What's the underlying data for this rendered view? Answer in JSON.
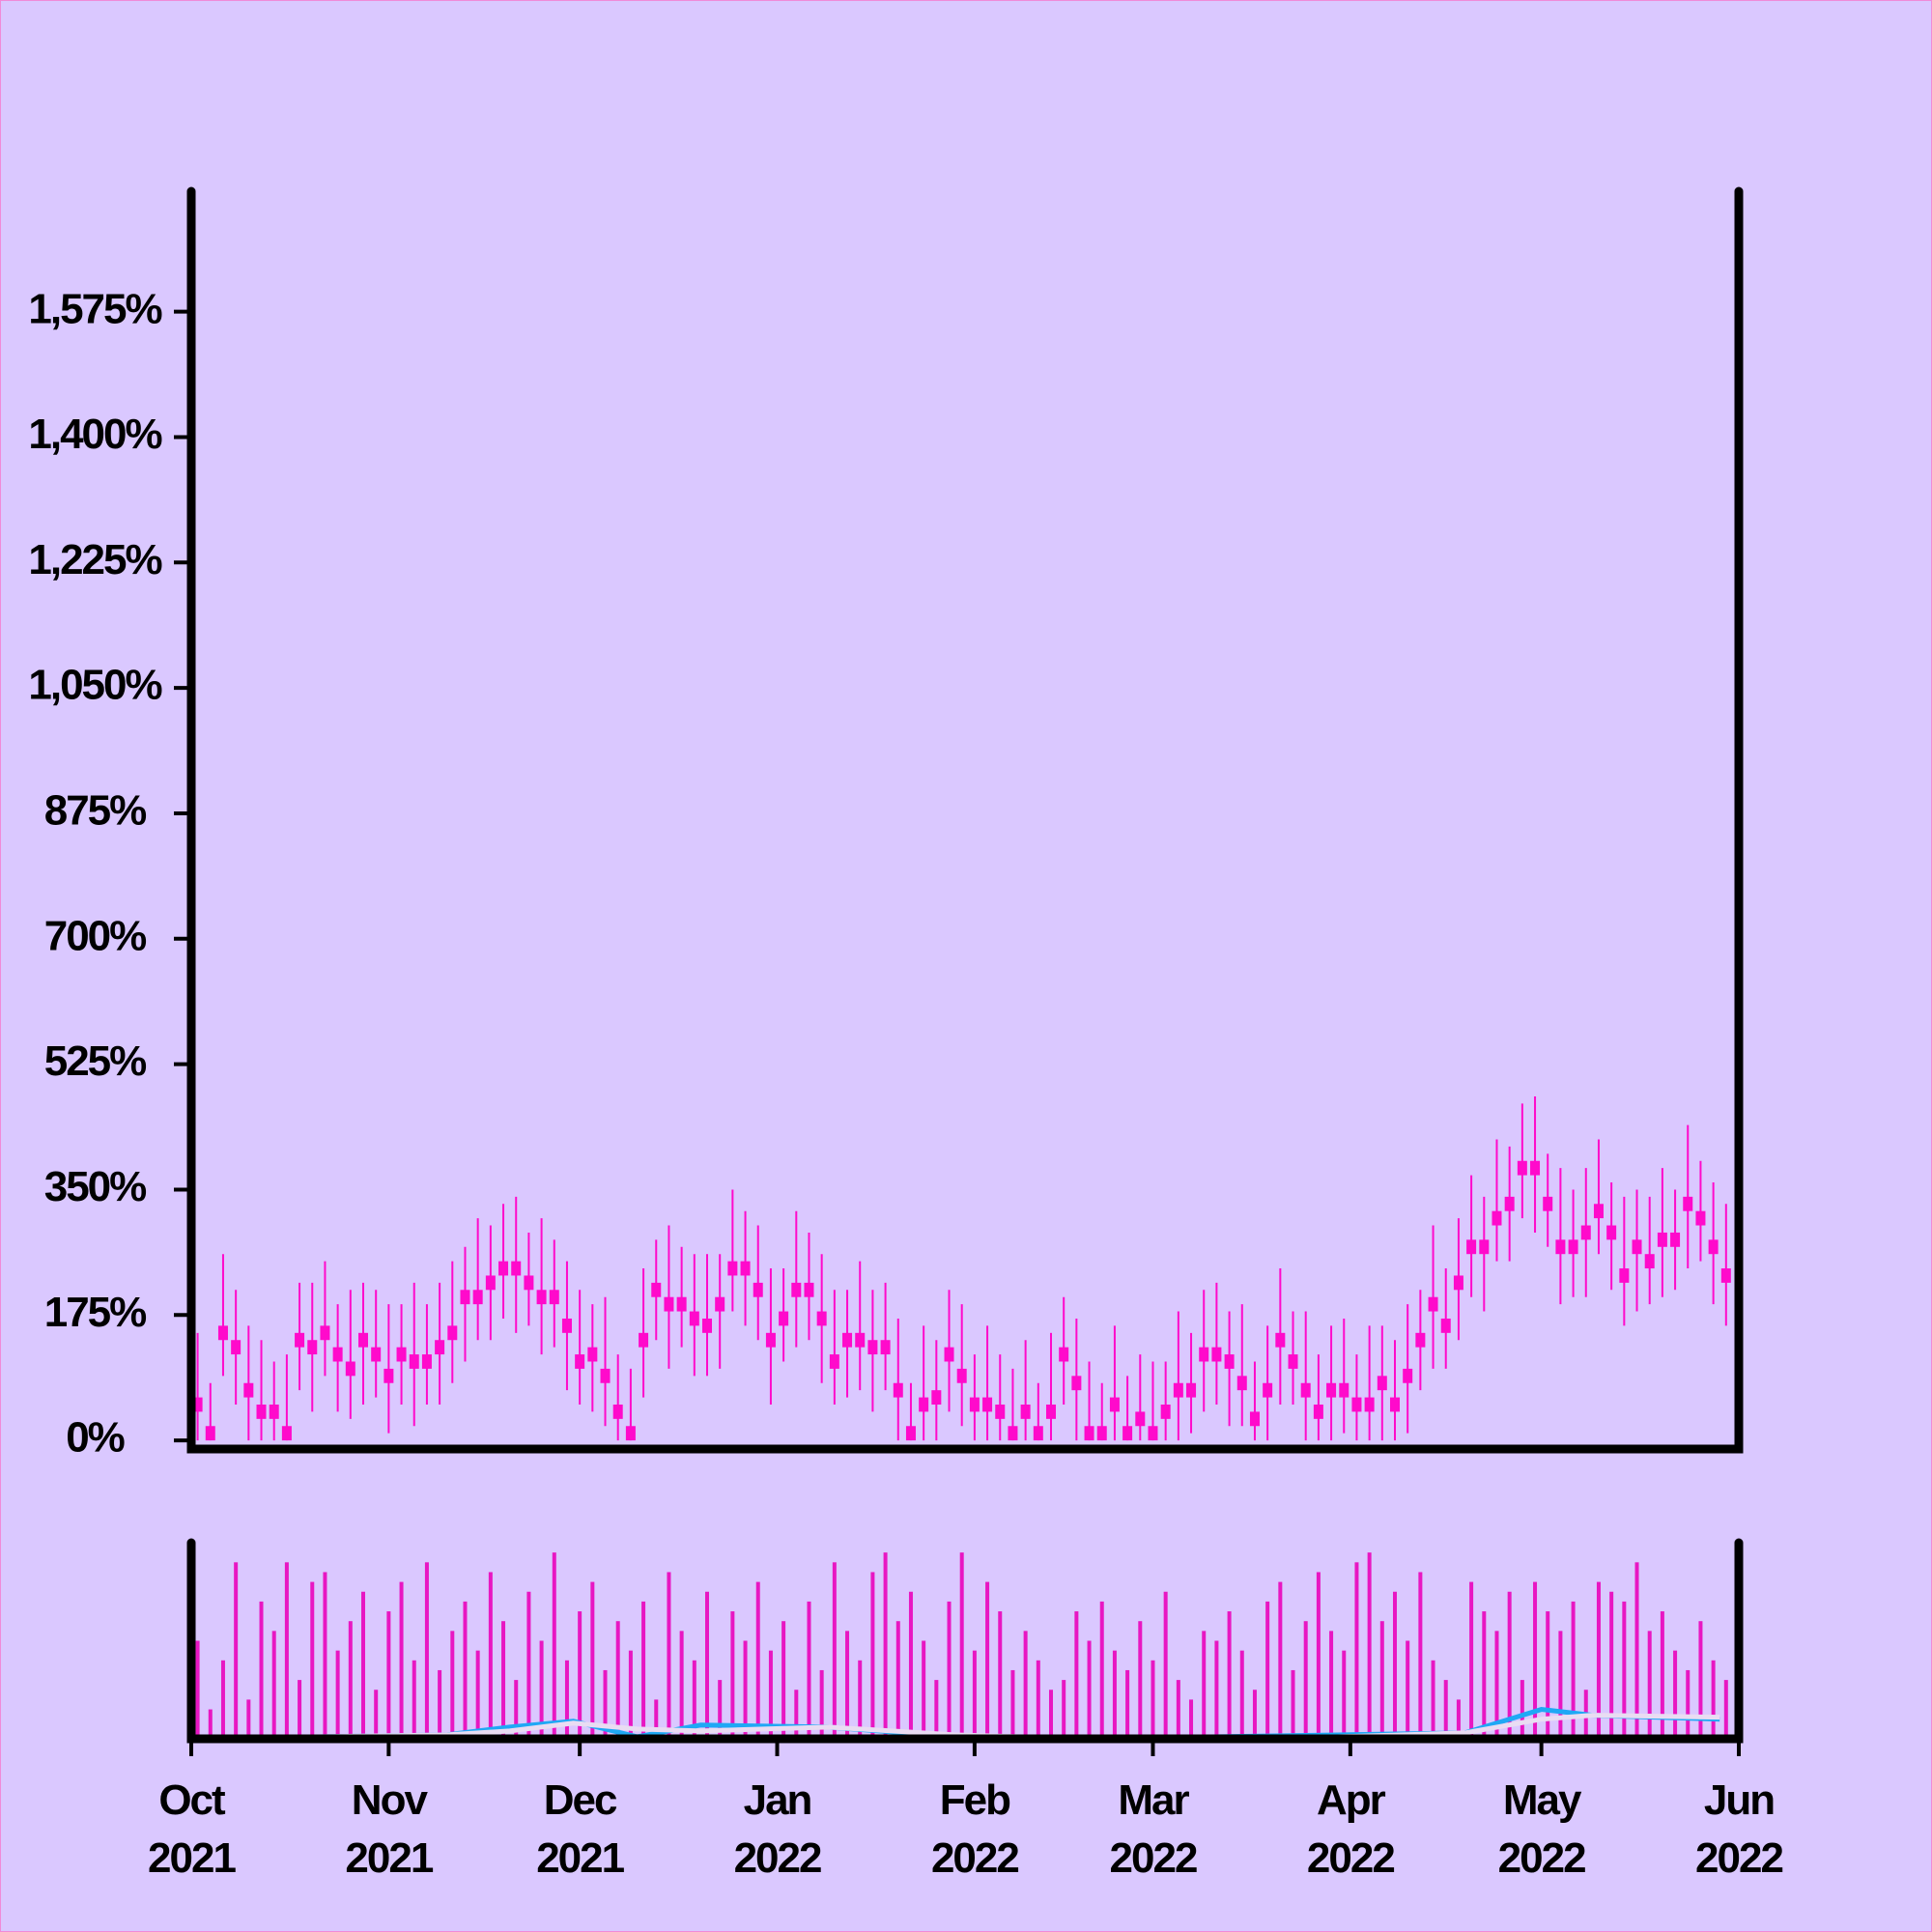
{
  "chart_data": [
    {
      "type": "candlestick",
      "x": [
        1,
        3,
        5,
        7,
        9,
        11,
        13,
        15,
        17,
        19,
        21,
        23,
        25,
        27,
        29,
        31,
        33,
        35,
        37,
        39,
        41,
        43,
        45,
        47,
        49,
        51,
        53,
        55,
        57,
        59,
        61,
        63,
        65,
        67,
        69,
        71,
        73,
        75,
        77,
        79,
        81,
        83,
        85,
        87,
        89,
        91,
        93,
        95,
        97,
        99,
        101,
        103,
        105,
        107,
        109,
        111,
        113,
        115,
        117,
        119,
        121,
        123,
        125,
        127,
        129,
        131,
        133,
        135,
        137,
        139,
        141,
        143,
        145,
        147,
        149,
        151,
        153,
        155,
        157,
        159,
        161,
        163,
        165,
        167,
        169,
        171,
        173,
        175,
        177,
        179,
        181,
        183,
        185,
        187,
        189,
        191,
        193,
        195,
        197,
        199,
        201,
        203,
        205,
        207,
        209,
        211,
        213,
        215,
        217,
        219,
        221,
        223,
        225,
        227,
        229,
        231,
        233,
        235,
        237,
        239,
        241
      ],
      "open": [
        60,
        20,
        140,
        140,
        80,
        50,
        50,
        20,
        130,
        140,
        140,
        130,
        110,
        130,
        130,
        100,
        110,
        120,
        120,
        120,
        140,
        190,
        190,
        230,
        230,
        230,
        230,
        210,
        190,
        170,
        120,
        110,
        100,
        50,
        20,
        130,
        200,
        200,
        200,
        160,
        170,
        180,
        230,
        230,
        220,
        150,
        160,
        200,
        200,
        180,
        120,
        130,
        130,
        140,
        140,
        80,
        20,
        40,
        50,
        110,
        100,
        60,
        60,
        50,
        20,
        30,
        20,
        30,
        110,
        90,
        20,
        20,
        40,
        20,
        20,
        20,
        30,
        60,
        60,
        110,
        110,
        120,
        90,
        40,
        60,
        130,
        120,
        80,
        50,
        60,
        80,
        60,
        60,
        70,
        60,
        80,
        130,
        180,
        170,
        210,
        260,
        260,
        300,
        320,
        370,
        370,
        340,
        280,
        280,
        280,
        310,
        300,
        240,
        260,
        260,
        270,
        270,
        320,
        320,
        280,
        240
      ],
      "high": [
        150,
        80,
        260,
        210,
        160,
        140,
        110,
        120,
        220,
        220,
        250,
        190,
        210,
        220,
        210,
        190,
        190,
        220,
        190,
        220,
        250,
        270,
        310,
        300,
        330,
        340,
        290,
        310,
        280,
        250,
        210,
        190,
        200,
        120,
        100,
        240,
        280,
        300,
        270,
        260,
        260,
        260,
        350,
        320,
        300,
        240,
        240,
        320,
        290,
        260,
        210,
        210,
        250,
        210,
        220,
        170,
        80,
        160,
        140,
        210,
        190,
        120,
        160,
        120,
        100,
        140,
        80,
        150,
        200,
        170,
        110,
        80,
        160,
        90,
        120,
        110,
        110,
        180,
        150,
        210,
        220,
        180,
        190,
        110,
        160,
        240,
        180,
        180,
        120,
        160,
        170,
        120,
        160,
        160,
        140,
        190,
        210,
        300,
        240,
        310,
        370,
        340,
        420,
        410,
        470,
        480,
        400,
        380,
        350,
        380,
        420,
        360,
        340,
        350,
        340,
        380,
        350,
        440,
        390,
        360,
        330
      ],
      "low": [
        0,
        0,
        90,
        50,
        0,
        0,
        0,
        0,
        70,
        40,
        90,
        40,
        30,
        50,
        60,
        10,
        50,
        20,
        50,
        50,
        80,
        110,
        140,
        140,
        170,
        150,
        160,
        120,
        130,
        70,
        50,
        40,
        20,
        0,
        0,
        60,
        140,
        100,
        130,
        90,
        90,
        100,
        180,
        160,
        140,
        50,
        110,
        130,
        140,
        80,
        50,
        60,
        70,
        40,
        70,
        0,
        0,
        0,
        0,
        40,
        20,
        0,
        0,
        0,
        0,
        0,
        0,
        0,
        50,
        0,
        0,
        0,
        0,
        0,
        0,
        0,
        0,
        0,
        10,
        40,
        50,
        20,
        20,
        0,
        0,
        50,
        50,
        0,
        0,
        0,
        10,
        0,
        0,
        0,
        0,
        10,
        70,
        100,
        100,
        140,
        200,
        180,
        250,
        250,
        310,
        290,
        270,
        190,
        200,
        200,
        260,
        210,
        160,
        180,
        190,
        200,
        210,
        240,
        250,
        190,
        160
      ],
      "close": [
        40,
        0,
        160,
        120,
        60,
        30,
        30,
        0,
        150,
        120,
        160,
        110,
        90,
        150,
        110,
        80,
        130,
        100,
        100,
        140,
        160,
        210,
        210,
        210,
        250,
        250,
        210,
        190,
        210,
        150,
        100,
        130,
        80,
        30,
        0,
        150,
        220,
        180,
        180,
        180,
        150,
        200,
        250,
        250,
        200,
        130,
        180,
        220,
        220,
        160,
        100,
        150,
        150,
        120,
        120,
        60,
        0,
        60,
        70,
        130,
        80,
        40,
        40,
        30,
        0,
        50,
        0,
        50,
        130,
        70,
        0,
        0,
        60,
        0,
        40,
        0,
        50,
        80,
        80,
        130,
        130,
        100,
        70,
        20,
        80,
        150,
        100,
        60,
        30,
        80,
        60,
        40,
        40,
        90,
        40,
        100,
        150,
        200,
        150,
        230,
        280,
        280,
        320,
        340,
        390,
        390,
        320,
        260,
        260,
        300,
        330,
        280,
        220,
        280,
        240,
        290,
        290,
        340,
        300,
        260,
        220
      ],
      "color": "#ff0acb",
      "xlim": [
        0,
        243
      ],
      "ylim": [
        -12,
        1743
      ],
      "yticks": [
        {
          "value": 0,
          "label": "0%"
        },
        {
          "value": 175,
          "label": "175%"
        },
        {
          "value": 350,
          "label": "350%"
        },
        {
          "value": 525,
          "label": "525%"
        },
        {
          "value": 700,
          "label": "700%"
        },
        {
          "value": 875,
          "label": "875%"
        },
        {
          "value": 1050,
          "label": "1,050%"
        },
        {
          "value": 1225,
          "label": "1,225%"
        },
        {
          "value": 1400,
          "label": "1,400%"
        },
        {
          "value": 1575,
          "label": "1,575%"
        }
      ]
    },
    {
      "type": "bar",
      "x": [
        1,
        3,
        5,
        7,
        9,
        11,
        13,
        15,
        17,
        19,
        21,
        23,
        25,
        27,
        29,
        31,
        33,
        35,
        37,
        39,
        41,
        43,
        45,
        47,
        49,
        51,
        53,
        55,
        57,
        59,
        61,
        63,
        65,
        67,
        69,
        71,
        73,
        75,
        77,
        79,
        81,
        83,
        85,
        87,
        89,
        91,
        93,
        95,
        97,
        99,
        101,
        103,
        105,
        107,
        109,
        111,
        113,
        115,
        117,
        119,
        121,
        123,
        125,
        127,
        129,
        131,
        133,
        135,
        137,
        139,
        141,
        143,
        145,
        147,
        149,
        151,
        153,
        155,
        157,
        159,
        161,
        163,
        165,
        167,
        169,
        171,
        173,
        175,
        177,
        179,
        181,
        183,
        185,
        187,
        189,
        191,
        193,
        195,
        197,
        199,
        201,
        203,
        205,
        207,
        209,
        211,
        213,
        215,
        217,
        219,
        221,
        223,
        225,
        227,
        229,
        231,
        233,
        235,
        237,
        239,
        241
      ],
      "values": [
        50,
        15,
        40,
        90,
        20,
        70,
        55,
        90,
        30,
        80,
        85,
        45,
        60,
        75,
        25,
        65,
        80,
        40,
        90,
        35,
        55,
        70,
        45,
        85,
        60,
        30,
        75,
        50,
        95,
        40,
        65,
        80,
        35,
        60,
        45,
        70,
        20,
        85,
        55,
        40,
        75,
        30,
        65,
        50,
        80,
        45,
        60,
        25,
        70,
        35,
        90,
        55,
        40,
        85,
        95,
        60,
        75,
        50,
        30,
        70,
        95,
        45,
        80,
        65,
        35,
        55,
        40,
        25,
        30,
        65,
        50,
        70,
        45,
        35,
        60,
        40,
        75,
        30,
        20,
        55,
        50,
        65,
        45,
        25,
        70,
        80,
        35,
        60,
        85,
        55,
        45,
        90,
        95,
        60,
        75,
        50,
        85,
        40,
        30,
        20,
        80,
        65,
        55,
        75,
        30,
        80,
        65,
        55,
        70,
        25,
        80,
        75,
        70,
        90,
        55,
        65,
        45,
        35,
        60,
        40,
        30
      ],
      "color": "#e817c2",
      "xlim": [
        0,
        243
      ],
      "ylim": [
        0,
        100
      ],
      "xticks": [
        {
          "value": 0,
          "label": "Oct 2021"
        },
        {
          "value": 31,
          "label": "Nov 2021"
        },
        {
          "value": 61,
          "label": "Dec 2021"
        },
        {
          "value": 92,
          "label": "Jan 2022"
        },
        {
          "value": 123,
          "label": "Feb 2022"
        },
        {
          "value": 151,
          "label": "Mar 2022"
        },
        {
          "value": 182,
          "label": "Apr 2022"
        },
        {
          "value": 212,
          "label": "May 2022"
        },
        {
          "value": 243,
          "label": "Jun 2022"
        }
      ],
      "series": [
        {
          "color": "#1fa8f5",
          "x": [
            0,
            20,
            40,
            50,
            60,
            70,
            80,
            100,
            120,
            140,
            160,
            180,
            200,
            212,
            220,
            240
          ],
          "values": [
            1,
            1,
            2,
            6,
            9,
            1,
            7,
            6,
            1,
            1,
            1,
            2,
            3,
            15,
            12,
            10
          ]
        },
        {
          "color": "#e9dcf2",
          "x": [
            0,
            20,
            40,
            50,
            60,
            70,
            80,
            100,
            120,
            140,
            160,
            180,
            200,
            212,
            220,
            240
          ],
          "values": [
            0,
            1,
            2,
            4,
            8,
            5,
            4,
            6,
            2,
            0,
            0,
            1,
            3,
            10,
            12,
            11
          ]
        }
      ]
    }
  ]
}
